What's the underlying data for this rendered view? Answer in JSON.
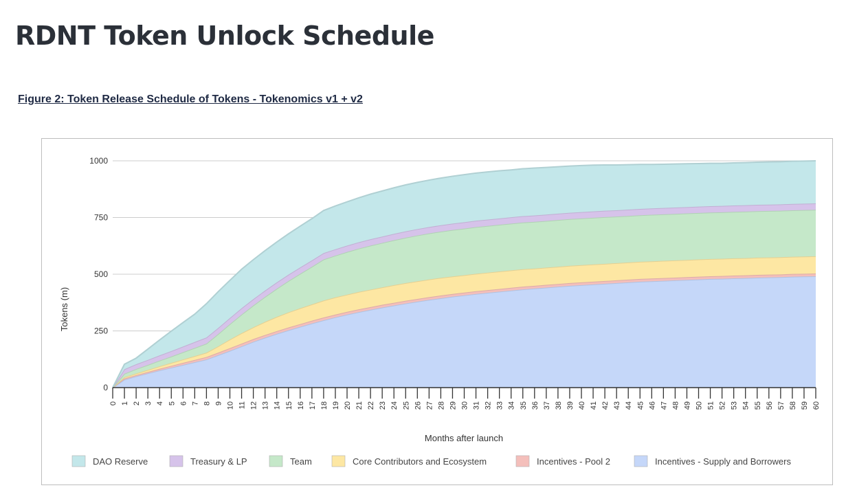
{
  "page": {
    "title": "RDNT Token Unlock Schedule",
    "caption": "Figure 2: Token Release Schedule of Tokens - Tokenomics v1 + v2"
  },
  "chart_data": {
    "type": "area",
    "stacked": true,
    "xlabel": "Months after launch",
    "ylabel": "Tokens (m)",
    "x": [
      0,
      1,
      2,
      3,
      4,
      5,
      6,
      7,
      8,
      9,
      10,
      11,
      12,
      13,
      14,
      15,
      16,
      17,
      18,
      19,
      20,
      21,
      22,
      23,
      24,
      25,
      26,
      27,
      28,
      29,
      30,
      31,
      32,
      33,
      34,
      35,
      36,
      37,
      38,
      39,
      40,
      41,
      42,
      43,
      44,
      45,
      46,
      47,
      48,
      49,
      50,
      51,
      52,
      53,
      54,
      55,
      56,
      57,
      58,
      59,
      60
    ],
    "ylim": [
      0,
      1000
    ],
    "yticks": [
      0,
      250,
      500,
      750,
      1000
    ],
    "grid": true,
    "legend_position": "bottom",
    "series": [
      {
        "name": "Incentives - Supply and Borrowers",
        "color": "#c5d7f9",
        "values": [
          0,
          35,
          50,
          63,
          76,
          88,
          100,
          112,
          124,
          143,
          162,
          182,
          202,
          220,
          237,
          253,
          268,
          283,
          297,
          310,
          322,
          333,
          343,
          353,
          362,
          371,
          379,
          387,
          394,
          401,
          407,
          413,
          418,
          423,
          428,
          433,
          437,
          441,
          445,
          449,
          452,
          455,
          458,
          461,
          464,
          467,
          469,
          471,
          473,
          475,
          477,
          479,
          480,
          482,
          483,
          485,
          486,
          487,
          489,
          490,
          491
        ]
      },
      {
        "name": "Incentives - Pool 2",
        "color": "#f4bfbb",
        "values": [
          0,
          5,
          5,
          6,
          7,
          8,
          9,
          10,
          11,
          11,
          12,
          12,
          12,
          12,
          12,
          12,
          12,
          12,
          12,
          12,
          12,
          12,
          12,
          12,
          12,
          12,
          12,
          12,
          12,
          12,
          12,
          12,
          12,
          12,
          12,
          12,
          12,
          12,
          12,
          12,
          12,
          12,
          12,
          12,
          12,
          12,
          12,
          12,
          12,
          12,
          12,
          12,
          12,
          12,
          12,
          12,
          12,
          12,
          12,
          12,
          12
        ]
      },
      {
        "name": "Core Contributors and Ecosystem",
        "color": "#fde7a3",
        "values": [
          0,
          6,
          7,
          9,
          11,
          13,
          15,
          17,
          19,
          28,
          38,
          46,
          52,
          58,
          63,
          67,
          70,
          72,
          75,
          76,
          76,
          77,
          77,
          77,
          78,
          78,
          78,
          78,
          78,
          77,
          77,
          77,
          77,
          77,
          77,
          77,
          76,
          76,
          76,
          76,
          76,
          76,
          76,
          76,
          76,
          76,
          76,
          76,
          76,
          76,
          76,
          76,
          76,
          76,
          76,
          76,
          76,
          76,
          76,
          76,
          76
        ]
      },
      {
        "name": "Team",
        "color": "#c5e8c9",
        "values": [
          0,
          15,
          20,
          22,
          25,
          28,
          32,
          36,
          40,
          54,
          68,
          82,
          96,
          110,
          124,
          138,
          152,
          166,
          181,
          184,
          188,
          191,
          194,
          196,
          198,
          200,
          202,
          203,
          204,
          205,
          205,
          206,
          206,
          206,
          206,
          206,
          206,
          206,
          206,
          206,
          206,
          206,
          206,
          205,
          205,
          205,
          205,
          205,
          205,
          205,
          205,
          205,
          205,
          205,
          205,
          205,
          205,
          205,
          205,
          205,
          205
        ]
      },
      {
        "name": "Treasury & LP",
        "color": "#d6c3ea",
        "values": [
          0,
          20,
          21,
          22,
          23,
          24,
          25,
          26,
          27,
          27,
          27,
          28,
          28,
          28,
          28,
          28,
          28,
          28,
          28,
          28,
          28,
          28,
          28,
          28,
          28,
          28,
          28,
          28,
          28,
          28,
          28,
          28,
          28,
          28,
          28,
          28,
          28,
          28,
          28,
          28,
          28,
          28,
          28,
          28,
          28,
          28,
          28,
          28,
          28,
          28,
          28,
          28,
          28,
          28,
          28,
          28,
          28,
          28,
          28,
          28,
          28
        ]
      },
      {
        "name": "DAO Reserve",
        "color": "#c3e7ea",
        "values": [
          0,
          22,
          27,
          48,
          68,
          88,
          106,
          123,
          149,
          160,
          166,
          172,
          174,
          176,
          178,
          180,
          182,
          184,
          188,
          191,
          193,
          196,
          199,
          201,
          203,
          205,
          206,
          207,
          208,
          209,
          210,
          210,
          210,
          210,
          209,
          209,
          209,
          208,
          207,
          206,
          205,
          204,
          202,
          200,
          198,
          196,
          194,
          193,
          192,
          191,
          190,
          189,
          188,
          188,
          188,
          188,
          188,
          188,
          188,
          188,
          188
        ]
      }
    ]
  }
}
